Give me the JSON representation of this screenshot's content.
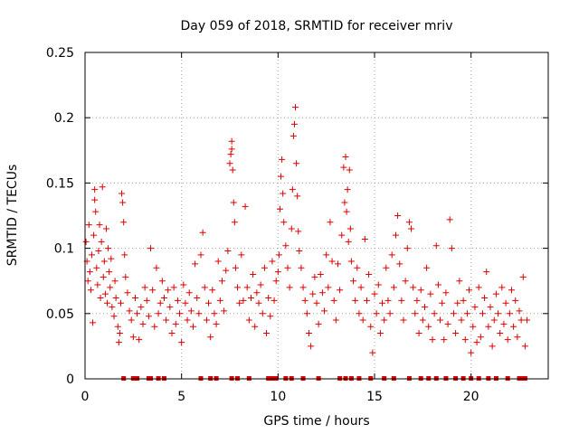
{
  "chart_data": {
    "type": "scatter",
    "title": "Day 059 of 2018, SRMTID for receiver mriv",
    "xlabel": "GPS time / hours",
    "ylabel": "SRMTID / TECUs",
    "xlim": [
      0,
      24
    ],
    "ylim": [
      0,
      0.25
    ],
    "xticks": [
      0,
      5,
      10,
      15,
      20
    ],
    "yticks": [
      0,
      0.05,
      0.1,
      0.15,
      0.2,
      0.25
    ],
    "xtick_labels": [
      "0",
      "5",
      "10",
      "15",
      "20"
    ],
    "ytick_labels": [
      "0",
      "0.05",
      "0.1",
      "0.15",
      "0.2",
      "0.25"
    ],
    "grid": true,
    "marker": "plus",
    "series": [
      {
        "name": "SRMTID",
        "color": "#dd0000",
        "points": [
          [
            0.05,
            0.105
          ],
          [
            0.1,
            0.09
          ],
          [
            0.15,
            0.075
          ],
          [
            0.2,
            0.118
          ],
          [
            0.25,
            0.082
          ],
          [
            0.3,
            0.068
          ],
          [
            0.35,
            0.095
          ],
          [
            0.4,
            0.043
          ],
          [
            0.45,
            0.11
          ],
          [
            0.5,
            0.145
          ],
          [
            0.5,
            0.137
          ],
          [
            0.55,
            0.128
          ],
          [
            0.6,
            0.085
          ],
          [
            0.65,
            0.072
          ],
          [
            0.7,
            0.098
          ],
          [
            0.75,
            0.118
          ],
          [
            0.8,
            0.062
          ],
          [
            0.85,
            0.105
          ],
          [
            0.9,
            0.147
          ],
          [
            0.95,
            0.078
          ],
          [
            1.0,
            0.09
          ],
          [
            1.05,
            0.065
          ],
          [
            1.1,
            0.115
          ],
          [
            1.15,
            0.058
          ],
          [
            1.2,
            0.1
          ],
          [
            1.25,
            0.082
          ],
          [
            1.3,
            0.07
          ],
          [
            1.35,
            0.092
          ],
          [
            1.4,
            0.055
          ],
          [
            1.5,
            0.048
          ],
          [
            1.55,
            0.075
          ],
          [
            1.6,
            0.062
          ],
          [
            1.7,
            0.04
          ],
          [
            1.75,
            0.028
          ],
          [
            1.8,
            0.035
          ],
          [
            1.85,
            0.058
          ],
          [
            1.9,
            0.142
          ],
          [
            1.95,
            0.135
          ],
          [
            2.0,
            0.12
          ],
          [
            2.05,
            0.095
          ],
          [
            2.1,
            0.078
          ],
          [
            2.2,
            0.066
          ],
          [
            2.3,
            0.052
          ],
          [
            2.4,
            0.045
          ],
          [
            2.5,
            0.032
          ],
          [
            2.6,
            0.062
          ],
          [
            2.7,
            0.05
          ],
          [
            2.8,
            0.03
          ],
          [
            2.9,
            0.055
          ],
          [
            3.0,
            0.042
          ],
          [
            3.1,
            0.07
          ],
          [
            3.2,
            0.06
          ],
          [
            3.3,
            0.048
          ],
          [
            3.4,
            0.1
          ],
          [
            3.5,
            0.068
          ],
          [
            3.6,
            0.04
          ],
          [
            3.7,
            0.085
          ],
          [
            3.8,
            0.05
          ],
          [
            3.9,
            0.058
          ],
          [
            4.0,
            0.075
          ],
          [
            4.1,
            0.062
          ],
          [
            4.2,
            0.045
          ],
          [
            4.3,
            0.068
          ],
          [
            4.4,
            0.055
          ],
          [
            4.5,
            0.035
          ],
          [
            4.6,
            0.07
          ],
          [
            4.7,
            0.042
          ],
          [
            4.8,
            0.06
          ],
          [
            4.9,
            0.05
          ],
          [
            5.0,
            0.028
          ],
          [
            5.1,
            0.072
          ],
          [
            5.2,
            0.058
          ],
          [
            5.3,
            0.045
          ],
          [
            5.4,
            0.066
          ],
          [
            5.5,
            0.052
          ],
          [
            5.6,
            0.04
          ],
          [
            5.7,
            0.088
          ],
          [
            5.8,
            0.062
          ],
          [
            5.9,
            0.05
          ],
          [
            6.0,
            0.095
          ],
          [
            6.1,
            0.112
          ],
          [
            6.2,
            0.07
          ],
          [
            6.3,
            0.045
          ],
          [
            6.4,
            0.058
          ],
          [
            6.5,
            0.032
          ],
          [
            6.6,
            0.068
          ],
          [
            6.7,
            0.05
          ],
          [
            6.8,
            0.042
          ],
          [
            6.9,
            0.09
          ],
          [
            7.0,
            0.06
          ],
          [
            7.1,
            0.075
          ],
          [
            7.2,
            0.052
          ],
          [
            7.3,
            0.083
          ],
          [
            7.4,
            0.098
          ],
          [
            7.5,
            0.165
          ],
          [
            7.55,
            0.172
          ],
          [
            7.6,
            0.182
          ],
          [
            7.6,
            0.176
          ],
          [
            7.65,
            0.16
          ],
          [
            7.7,
            0.135
          ],
          [
            7.75,
            0.12
          ],
          [
            7.8,
            0.085
          ],
          [
            7.9,
            0.07
          ],
          [
            8.0,
            0.058
          ],
          [
            8.1,
            0.095
          ],
          [
            8.2,
            0.06
          ],
          [
            8.3,
            0.132
          ],
          [
            8.4,
            0.07
          ],
          [
            8.5,
            0.045
          ],
          [
            8.6,
            0.062
          ],
          [
            8.7,
            0.08
          ],
          [
            8.8,
            0.04
          ],
          [
            8.9,
            0.066
          ],
          [
            9.0,
            0.058
          ],
          [
            9.1,
            0.072
          ],
          [
            9.2,
            0.05
          ],
          [
            9.3,
            0.085
          ],
          [
            9.4,
            0.035
          ],
          [
            9.5,
            0.062
          ],
          [
            9.6,
            0.048
          ],
          [
            9.7,
            0.09
          ],
          [
            9.8,
            0.06
          ],
          [
            9.9,
            0.075
          ],
          [
            10.0,
            0.082
          ],
          [
            10.05,
            0.095
          ],
          [
            10.1,
            0.13
          ],
          [
            10.15,
            0.155
          ],
          [
            10.2,
            0.168
          ],
          [
            10.25,
            0.142
          ],
          [
            10.3,
            0.12
          ],
          [
            10.4,
            0.102
          ],
          [
            10.5,
            0.085
          ],
          [
            10.6,
            0.07
          ],
          [
            10.7,
            0.115
          ],
          [
            10.75,
            0.145
          ],
          [
            10.8,
            0.186
          ],
          [
            10.85,
            0.195
          ],
          [
            10.9,
            0.208
          ],
          [
            10.95,
            0.165
          ],
          [
            11.0,
            0.14
          ],
          [
            11.05,
            0.113
          ],
          [
            11.1,
            0.098
          ],
          [
            11.2,
            0.085
          ],
          [
            11.3,
            0.07
          ],
          [
            11.4,
            0.06
          ],
          [
            11.5,
            0.05
          ],
          [
            11.6,
            0.035
          ],
          [
            11.7,
            0.025
          ],
          [
            11.8,
            0.065
          ],
          [
            11.9,
            0.078
          ],
          [
            12.0,
            0.058
          ],
          [
            12.1,
            0.042
          ],
          [
            12.2,
            0.08
          ],
          [
            12.3,
            0.066
          ],
          [
            12.4,
            0.052
          ],
          [
            12.5,
            0.095
          ],
          [
            12.6,
            0.07
          ],
          [
            12.7,
            0.12
          ],
          [
            12.8,
            0.09
          ],
          [
            12.9,
            0.06
          ],
          [
            13.0,
            0.045
          ],
          [
            13.1,
            0.088
          ],
          [
            13.2,
            0.068
          ],
          [
            13.3,
            0.11
          ],
          [
            13.4,
            0.162
          ],
          [
            13.45,
            0.135
          ],
          [
            13.5,
            0.17
          ],
          [
            13.55,
            0.128
          ],
          [
            13.6,
            0.145
          ],
          [
            13.65,
            0.105
          ],
          [
            13.7,
            0.16
          ],
          [
            13.75,
            0.115
          ],
          [
            13.8,
            0.09
          ],
          [
            13.9,
            0.075
          ],
          [
            14.0,
            0.06
          ],
          [
            14.1,
            0.085
          ],
          [
            14.2,
            0.05
          ],
          [
            14.3,
            0.07
          ],
          [
            14.4,
            0.045
          ],
          [
            14.5,
            0.107
          ],
          [
            14.6,
            0.06
          ],
          [
            14.7,
            0.08
          ],
          [
            14.8,
            0.04
          ],
          [
            14.9,
            0.02
          ],
          [
            15.0,
            0.065
          ],
          [
            15.1,
            0.05
          ],
          [
            15.2,
            0.072
          ],
          [
            15.3,
            0.035
          ],
          [
            15.4,
            0.058
          ],
          [
            15.5,
            0.045
          ],
          [
            15.6,
            0.085
          ],
          [
            15.7,
            0.06
          ],
          [
            15.8,
            0.05
          ],
          [
            15.9,
            0.095
          ],
          [
            16.0,
            0.07
          ],
          [
            16.1,
            0.11
          ],
          [
            16.2,
            0.125
          ],
          [
            16.3,
            0.088
          ],
          [
            16.4,
            0.06
          ],
          [
            16.5,
            0.045
          ],
          [
            16.6,
            0.075
          ],
          [
            16.7,
            0.1
          ],
          [
            16.8,
            0.12
          ],
          [
            16.9,
            0.115
          ],
          [
            17.0,
            0.07
          ],
          [
            17.1,
            0.05
          ],
          [
            17.2,
            0.06
          ],
          [
            17.3,
            0.035
          ],
          [
            17.4,
            0.068
          ],
          [
            17.5,
            0.045
          ],
          [
            17.6,
            0.055
          ],
          [
            17.7,
            0.085
          ],
          [
            17.8,
            0.04
          ],
          [
            17.9,
            0.065
          ],
          [
            18.0,
            0.03
          ],
          [
            18.1,
            0.05
          ],
          [
            18.2,
            0.102
          ],
          [
            18.3,
            0.072
          ],
          [
            18.4,
            0.045
          ],
          [
            18.5,
            0.058
          ],
          [
            18.6,
            0.03
          ],
          [
            18.7,
            0.066
          ],
          [
            18.8,
            0.042
          ],
          [
            18.9,
            0.122
          ],
          [
            19.0,
            0.1
          ],
          [
            19.1,
            0.05
          ],
          [
            19.2,
            0.035
          ],
          [
            19.3,
            0.058
          ],
          [
            19.4,
            0.075
          ],
          [
            19.5,
            0.045
          ],
          [
            19.6,
            0.06
          ],
          [
            19.7,
            0.03
          ],
          [
            19.8,
            0.05
          ],
          [
            19.9,
            0.068
          ],
          [
            20.0,
            0.02
          ],
          [
            20.1,
            0.04
          ],
          [
            20.2,
            0.055
          ],
          [
            20.3,
            0.028
          ],
          [
            20.4,
            0.07
          ],
          [
            20.5,
            0.032
          ],
          [
            20.6,
            0.05
          ],
          [
            20.7,
            0.062
          ],
          [
            20.8,
            0.082
          ],
          [
            20.9,
            0.04
          ],
          [
            21.0,
            0.055
          ],
          [
            21.1,
            0.025
          ],
          [
            21.2,
            0.045
          ],
          [
            21.3,
            0.065
          ],
          [
            21.4,
            0.05
          ],
          [
            21.5,
            0.035
          ],
          [
            21.6,
            0.07
          ],
          [
            21.7,
            0.042
          ],
          [
            21.8,
            0.058
          ],
          [
            21.9,
            0.03
          ],
          [
            22.0,
            0.05
          ],
          [
            22.1,
            0.068
          ],
          [
            22.2,
            0.04
          ],
          [
            22.3,
            0.06
          ],
          [
            22.4,
            0.032
          ],
          [
            22.5,
            0.052
          ],
          [
            22.6,
            0.045
          ],
          [
            22.7,
            0.078
          ],
          [
            22.8,
            0.025
          ],
          [
            22.9,
            0.045
          ]
        ]
      }
    ],
    "baseline_marks": {
      "name": "zero-level markers",
      "color": "#dd0000",
      "y": 0,
      "x": [
        2.0,
        2.5,
        2.7,
        3.3,
        3.4,
        3.8,
        4.1,
        6.0,
        6.5,
        6.8,
        7.6,
        7.9,
        8.5,
        9.5,
        9.6,
        9.7,
        9.8,
        9.9,
        10.4,
        10.7,
        11.3,
        12.1,
        13.2,
        13.5,
        13.8,
        14.2,
        14.8,
        15.5,
        16.0,
        16.8,
        17.4,
        17.8,
        18.2,
        18.7,
        19.2,
        19.6,
        20.0,
        20.4,
        20.9,
        21.3,
        21.9,
        22.5,
        22.6,
        22.7,
        22.8
      ]
    }
  }
}
